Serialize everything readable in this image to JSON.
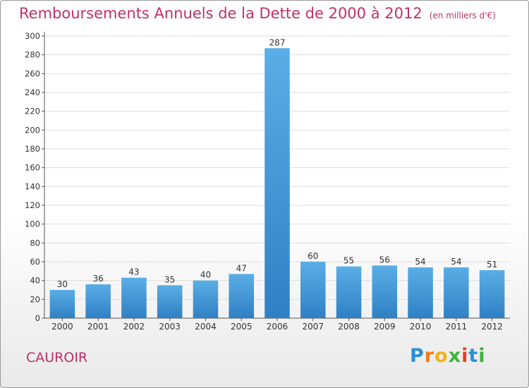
{
  "header": {
    "title": "Remboursements Annuels de la Dette de 2000 à 2012",
    "unit": "(en milliers d'€)"
  },
  "footer": {
    "commune": "CAUROIR",
    "logo": "Proxiti"
  },
  "colors": {
    "title": "#c0306a",
    "bar_light": "#5aaee6",
    "bar_dark": "#2f80c4",
    "grid": "#dddddd"
  },
  "chart_data": {
    "type": "bar",
    "title": "Remboursements Annuels de la Dette de 2000 à 2012",
    "subtitle": "(en milliers d'€)",
    "xlabel": "",
    "ylabel": "",
    "categories": [
      "2000",
      "2001",
      "2002",
      "2003",
      "2004",
      "2005",
      "2006",
      "2007",
      "2008",
      "2009",
      "2010",
      "2011",
      "2012"
    ],
    "values": [
      30,
      36,
      43,
      35,
      40,
      47,
      287,
      60,
      55,
      56,
      54,
      54,
      51
    ],
    "ylim": [
      0,
      300
    ],
    "yticks": [
      0,
      20,
      40,
      60,
      80,
      100,
      120,
      140,
      160,
      180,
      200,
      220,
      240,
      260,
      280,
      300
    ],
    "grid": true,
    "legend": "none"
  }
}
